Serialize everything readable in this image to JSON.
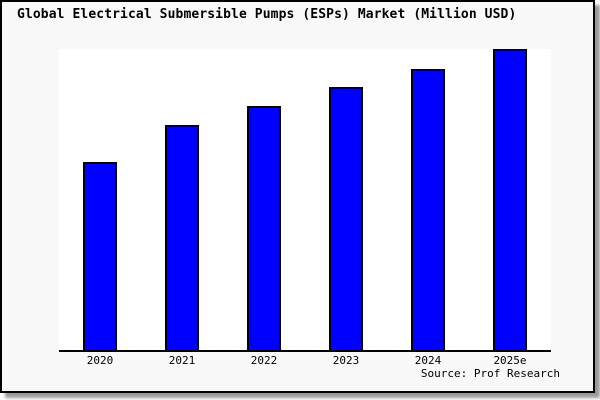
{
  "window": {
    "background": "#f8f8f8",
    "border_color": "#000000",
    "shadow_color": "#999999"
  },
  "chart_data": {
    "type": "bar",
    "title": "Global Electrical Submersible Pumps (ESPs) Market (Million USD)",
    "categories": [
      "2020",
      "2021",
      "2022",
      "2023",
      "2024",
      "2025e"
    ],
    "values": [
      62.5,
      74.8,
      81.1,
      87.4,
      93.4,
      100
    ],
    "values_note": "no y-axis scale or gridlines shown; values are relative bar heights as % of tallest bar (2025e)",
    "ylim": [
      0,
      100
    ],
    "xlabel": "",
    "ylabel": "",
    "grid": false,
    "legend": false,
    "bar_color": "#0000ff",
    "bar_border_color": "#000000",
    "plot_background": "#ffffff",
    "source": "Source: Prof Research"
  }
}
